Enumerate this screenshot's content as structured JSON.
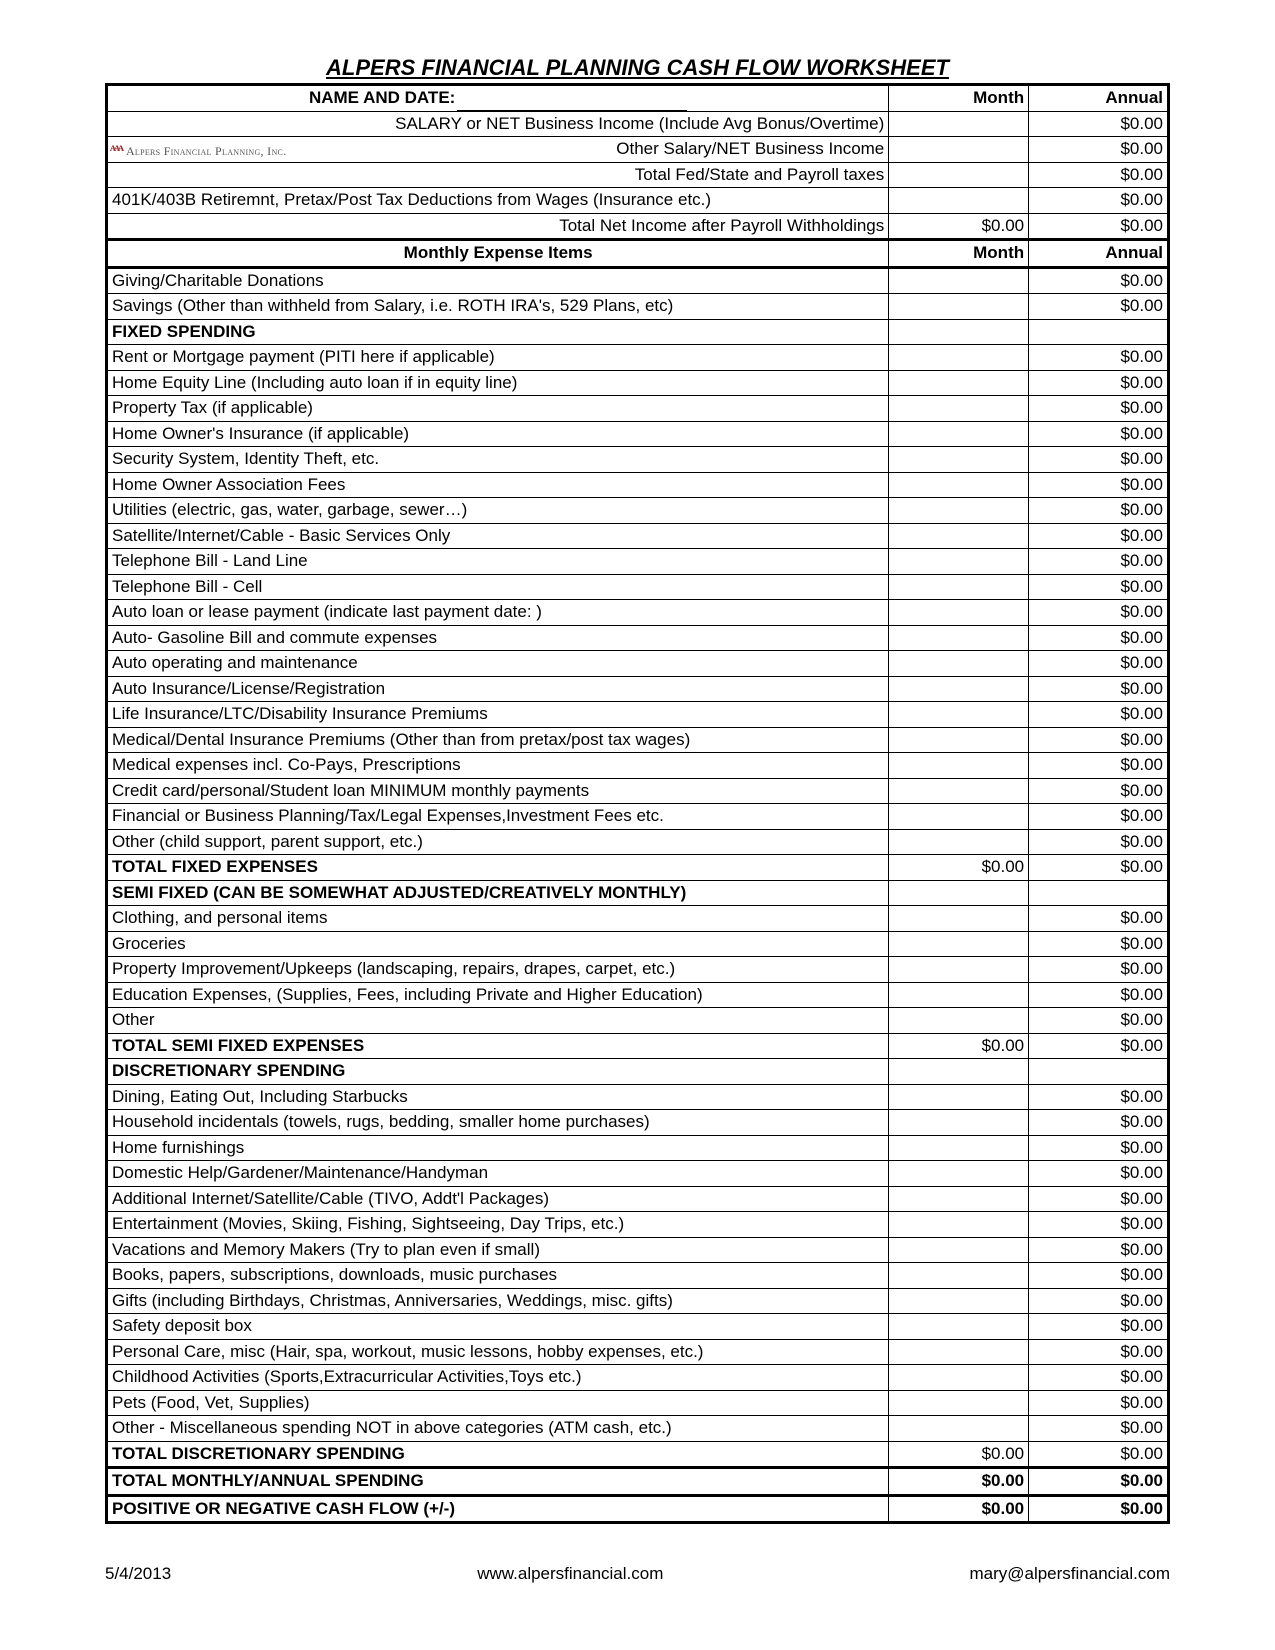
{
  "title": "ALPERS FINANCIAL PLANNING CASH FLOW WORKSHEET",
  "logo_text": "Alpers Financial Planning, Inc.",
  "header": {
    "name_date": "NAME AND DATE:",
    "month": "Month",
    "annual": "Annual"
  },
  "income_rows": [
    {
      "label": "SALARY or NET Business Income (Include Avg Bonus/Overtime)",
      "align": "right",
      "month": "",
      "annual": "$0.00"
    },
    {
      "label": "Other Salary/NET Business Income",
      "align": "right",
      "month": "",
      "annual": "$0.00",
      "has_logo": true
    },
    {
      "label": "Total Fed/State and Payroll taxes",
      "align": "right",
      "month": "",
      "annual": "$0.00"
    },
    {
      "label": "401K/403B Retiremnt, Pretax/Post Tax Deductions from Wages (Insurance etc.)",
      "align": "left",
      "month": "",
      "annual": "$0.00"
    },
    {
      "label": "Total Net Income after Payroll Withholdings",
      "align": "right",
      "month": "$0.00",
      "annual": "$0.00"
    }
  ],
  "expense_header": {
    "label": "Monthly Expense Items",
    "month": "Month",
    "annual": "Annual"
  },
  "rows": [
    {
      "type": "row",
      "label": "Giving/Charitable Donations",
      "month": "",
      "annual": "$0.00"
    },
    {
      "type": "row",
      "label": "Savings (Other than withheld from Salary, i.e. ROTH IRA's, 529 Plans, etc)",
      "month": "",
      "annual": "$0.00"
    },
    {
      "type": "section",
      "label": "FIXED SPENDING",
      "month": "",
      "annual": ""
    },
    {
      "type": "row",
      "label": "Rent or Mortgage payment (PITI here if applicable)",
      "month": "",
      "annual": "$0.00"
    },
    {
      "type": "row",
      "label": "Home Equity Line (Including auto loan if in equity line)",
      "month": "",
      "annual": "$0.00"
    },
    {
      "type": "row",
      "label": "Property Tax (if applicable)",
      "month": "",
      "annual": "$0.00"
    },
    {
      "type": "row",
      "label": "Home Owner's Insurance (if applicable)",
      "month": "",
      "annual": "$0.00"
    },
    {
      "type": "row",
      "label": "Security System, Identity Theft, etc.",
      "month": "",
      "annual": "$0.00"
    },
    {
      "type": "row",
      "label": "Home Owner Association Fees",
      "month": "",
      "annual": "$0.00"
    },
    {
      "type": "row",
      "label": "Utilities (electric, gas, water, garbage, sewer…)",
      "month": "",
      "annual": "$0.00"
    },
    {
      "type": "row",
      "label": "Satellite/Internet/Cable - Basic Services Only",
      "month": "",
      "annual": "$0.00"
    },
    {
      "type": "row",
      "label": "Telephone Bill - Land Line",
      "month": "",
      "annual": "$0.00"
    },
    {
      "type": "row",
      "label": "Telephone Bill -  Cell",
      "month": "",
      "annual": "$0.00"
    },
    {
      "type": "row",
      "label": "Auto loan or lease payment (indicate last payment date:                    )",
      "month": "",
      "annual": "$0.00"
    },
    {
      "type": "row",
      "label": "Auto- Gasoline Bill and commute expenses",
      "month": "",
      "annual": "$0.00"
    },
    {
      "type": "row",
      "label": "Auto operating and maintenance",
      "month": "",
      "annual": "$0.00"
    },
    {
      "type": "row",
      "label": "Auto Insurance/License/Registration",
      "month": "",
      "annual": "$0.00"
    },
    {
      "type": "row",
      "label": "Life Insurance/LTC/Disability Insurance Premiums",
      "month": "",
      "annual": "$0.00"
    },
    {
      "type": "row",
      "label": "Medical/Dental Insurance Premiums (Other than from pretax/post tax wages)",
      "month": "",
      "annual": "$0.00"
    },
    {
      "type": "row",
      "label": "Medical expenses incl. Co-Pays, Prescriptions",
      "month": "",
      "annual": "$0.00"
    },
    {
      "type": "row",
      "label": "Credit card/personal/Student loan MINIMUM monthly payments",
      "month": "",
      "annual": "$0.00"
    },
    {
      "type": "row",
      "label": "Financial or Business Planning/Tax/Legal Expenses,Investment Fees etc.",
      "month": "",
      "annual": "$0.00"
    },
    {
      "type": "row",
      "label": "Other (child support, parent support, etc.)",
      "month": "",
      "annual": "$0.00"
    },
    {
      "type": "total",
      "label": "TOTAL FIXED EXPENSES",
      "month": "$0.00",
      "annual": "$0.00"
    },
    {
      "type": "section",
      "label": "SEMI FIXED (CAN BE SOMEWHAT ADJUSTED/CREATIVELY MONTHLY)",
      "month": "",
      "annual": ""
    },
    {
      "type": "row",
      "label": "Clothing, and personal items",
      "month": "",
      "annual": "$0.00"
    },
    {
      "type": "row",
      "label": "Groceries",
      "month": "",
      "annual": "$0.00"
    },
    {
      "type": "row",
      "label": "Property Improvement/Upkeeps (landscaping, repairs, drapes, carpet, etc.)",
      "month": "",
      "annual": "$0.00"
    },
    {
      "type": "row",
      "label": "Education Expenses, (Supplies, Fees, including Private and Higher Education)",
      "month": "",
      "annual": "$0.00"
    },
    {
      "type": "row",
      "label": "Other",
      "month": "",
      "annual": "$0.00"
    },
    {
      "type": "total",
      "label": "TOTAL SEMI FIXED  EXPENSES",
      "month": "$0.00",
      "annual": "$0.00"
    },
    {
      "type": "section",
      "label": "DISCRETIONARY SPENDING",
      "month": "",
      "annual": ""
    },
    {
      "type": "row",
      "label": "Dining, Eating Out, Including Starbucks",
      "month": "",
      "annual": "$0.00"
    },
    {
      "type": "row",
      "label": "Household incidentals (towels, rugs, bedding, smaller home purchases)",
      "month": "",
      "annual": "$0.00"
    },
    {
      "type": "row",
      "label": "Home furnishings",
      "month": "",
      "annual": "$0.00"
    },
    {
      "type": "row",
      "label": "Domestic Help/Gardener/Maintenance/Handyman",
      "month": "",
      "annual": "$0.00"
    },
    {
      "type": "row",
      "label": "Additional Internet/Satellite/Cable  (TIVO, Addt'l Packages)",
      "month": "",
      "annual": "$0.00"
    },
    {
      "type": "row",
      "label": "Entertainment (Movies, Skiing, Fishing, Sightseeing, Day Trips, etc.)",
      "month": "",
      "annual": "$0.00"
    },
    {
      "type": "row",
      "label": "Vacations and Memory Makers (Try to plan even if small)",
      "month": "",
      "annual": "$0.00"
    },
    {
      "type": "row",
      "label": "Books, papers, subscriptions, downloads, music purchases",
      "month": "",
      "annual": "$0.00"
    },
    {
      "type": "row",
      "label": "Gifts (including Birthdays, Christmas, Anniversaries, Weddings, misc. gifts)",
      "month": "",
      "annual": "$0.00"
    },
    {
      "type": "row",
      "label": "Safety deposit box",
      "month": "",
      "annual": "$0.00"
    },
    {
      "type": "row",
      "label": "Personal Care, misc (Hair, spa, workout, music lessons, hobby expenses, etc.)",
      "month": "",
      "annual": "$0.00"
    },
    {
      "type": "row",
      "label": "Childhood Activities (Sports,Extracurricular Activities,Toys etc.)",
      "month": "",
      "annual": "$0.00"
    },
    {
      "type": "row",
      "label": "Pets (Food, Vet, Supplies)",
      "month": "",
      "annual": "$0.00"
    },
    {
      "type": "row",
      "label": "Other - Miscellaneous spending NOT in above categories (ATM cash, etc.)",
      "month": "",
      "annual": "$0.00"
    },
    {
      "type": "total",
      "label": "TOTAL DISCRETIONARY SPENDING",
      "month": "$0.00",
      "annual": "$0.00"
    },
    {
      "type": "grand",
      "label": "TOTAL MONTHLY/ANNUAL SPENDING",
      "month": "$0.00",
      "annual": "$0.00"
    },
    {
      "type": "grand",
      "label": "POSITIVE OR NEGATIVE CASH FLOW (+/-)",
      "month": "$0.00",
      "annual": "$0.00"
    }
  ],
  "footer": {
    "date": "5/4/2013",
    "url": "www.alpersfinancial.com",
    "email": "mary@alpersfinancial.com"
  }
}
